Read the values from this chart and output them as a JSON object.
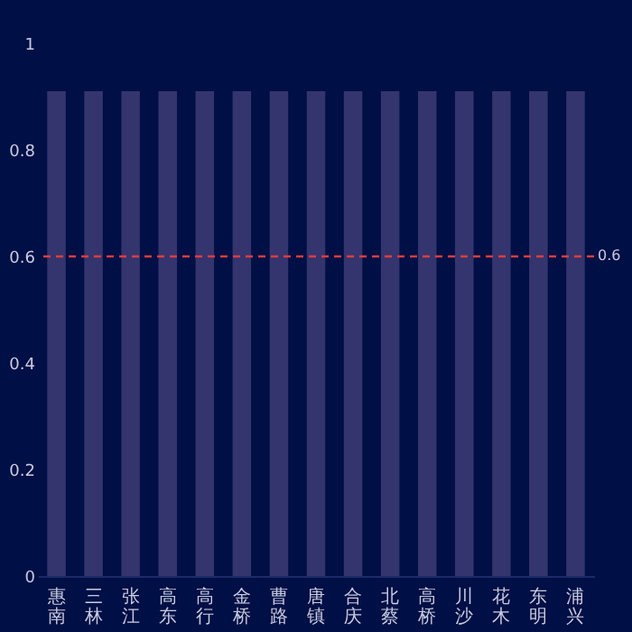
{
  "chart_data": {
    "type": "bar",
    "categories": [
      "惠南",
      "三林",
      "张江",
      "高东",
      "高行",
      "金桥",
      "曹路",
      "唐镇",
      "合庆",
      "北蔡",
      "高桥",
      "川沙",
      "花木",
      "东明",
      "浦兴"
    ],
    "values": [
      0.91,
      0.91,
      0.91,
      0.91,
      0.91,
      0.91,
      0.91,
      0.91,
      0.91,
      0.91,
      0.91,
      0.91,
      0.91,
      0.91,
      0.91
    ],
    "color": "#34346f",
    "ylim": [
      0,
      1
    ],
    "yticks": [
      0,
      0.2,
      0.4,
      0.6,
      0.8,
      1
    ],
    "grid": false,
    "ref_lines": [
      {
        "axis": "y",
        "value": 0.6,
        "label": "0.6",
        "color": "#e03c3c",
        "line_style": "dashed"
      }
    ]
  }
}
